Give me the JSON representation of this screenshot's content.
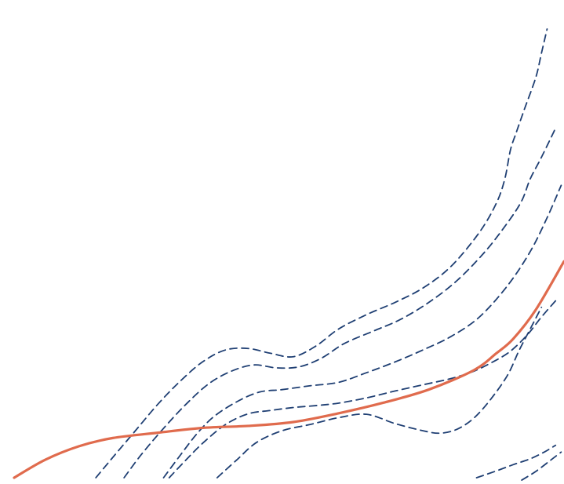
{
  "chart_data": {
    "type": "line",
    "title": "",
    "xlabel": "",
    "ylabel": "",
    "xlim": [
      0,
      100
    ],
    "ylim": [
      0,
      100
    ],
    "grid": false,
    "legend": "none",
    "series": [
      {
        "style": "solid",
        "color": "#e06b4d",
        "x": [
          2.5,
          8,
          14,
          20,
          28,
          36,
          44,
          52,
          60,
          68,
          76,
          84,
          88,
          91,
          95,
          100
        ],
        "y": [
          1.3,
          5,
          7.8,
          9.5,
          10.6,
          11.6,
          12.0,
          12.8,
          14.6,
          16.8,
          19.5,
          23.5,
          27,
          30,
          36,
          46
        ]
      },
      {
        "style": "dashed",
        "color": "#1f3f73",
        "x": [
          17,
          20,
          24,
          28,
          32,
          36,
          40,
          44,
          48,
          52,
          56,
          60,
          65,
          70,
          75,
          80,
          85,
          88,
          89.5,
          90.5,
          91.5,
          93,
          95,
          96,
          97
        ],
        "y": [
          1.3,
          5.5,
          11,
          16.5,
          21.3,
          25.3,
          27.7,
          28.0,
          27.0,
          26.3,
          28.5,
          32,
          35,
          37.5,
          40.5,
          45,
          52,
          58,
          63,
          69,
          72.5,
          77.5,
          84,
          89,
          94
        ]
      },
      {
        "style": "dashed",
        "color": "#1f3f73",
        "x": [
          22,
          25,
          29,
          33,
          37,
          41,
          45,
          49,
          53,
          57,
          61,
          66,
          71,
          76,
          81,
          86,
          90,
          92.5,
          94,
          96,
          98.5
        ],
        "y": [
          1.3,
          6,
          11.5,
          16.5,
          20.7,
          23.3,
          24.6,
          24.0,
          24.2,
          26.0,
          29.0,
          31.5,
          34.0,
          37.5,
          42.0,
          48,
          54,
          58.5,
          63,
          67.5,
          73.5
        ]
      },
      {
        "style": "dashed",
        "color": "#1f3f73",
        "x": [
          29,
          32,
          35,
          38,
          42,
          46,
          50,
          55,
          60,
          65,
          70,
          75,
          80,
          85,
          90,
          94,
          97,
          99.5
        ],
        "y": [
          1.3,
          6,
          10.5,
          14.0,
          17.0,
          19.0,
          19.5,
          20.3,
          21.0,
          23.0,
          25.2,
          27.7,
          30.5,
          34.5,
          41,
          48,
          55,
          61.7
        ]
      },
      {
        "style": "dashed",
        "color": "#1f3f73",
        "x": [
          30,
          33,
          36,
          40,
          44,
          48,
          52,
          56,
          60,
          65,
          70,
          75,
          80,
          84,
          87.5,
          90,
          92,
          94,
          96,
          99
        ],
        "y": [
          1.3,
          5,
          8.5,
          12.3,
          14.5,
          15.2,
          15.8,
          16.2,
          16.7,
          17.8,
          19.2,
          20.5,
          21.8,
          23.3,
          25.3,
          27.0,
          29.0,
          31.5,
          34.5,
          38.5
        ]
      },
      {
        "style": "dashed",
        "color": "#1f3f73",
        "x": [
          38.5,
          42,
          45.5,
          50,
          55,
          60,
          65,
          70,
          75,
          78,
          81,
          84,
          87,
          90,
          92,
          94,
          96
        ],
        "y": [
          1.3,
          5,
          8.6,
          11.0,
          12.3,
          13.7,
          14.4,
          12.5,
          11.0,
          10.5,
          11.3,
          13.6,
          17.5,
          22.5,
          27.5,
          32.0,
          36.5
        ]
      },
      {
        "style": "dashed",
        "color": "#1f3f73",
        "x": [
          84.5,
          88,
          91,
          94,
          96.5,
          98.5
        ],
        "y": [
          1.3,
          2.7,
          4.0,
          5.2,
          6.6,
          8.0
        ]
      },
      {
        "style": "dashed",
        "color": "#1f3f73",
        "x": [
          92.5,
          95,
          97.5,
          99.5
        ],
        "y": [
          0.8,
          2.6,
          4.8,
          6.6
        ]
      }
    ]
  }
}
